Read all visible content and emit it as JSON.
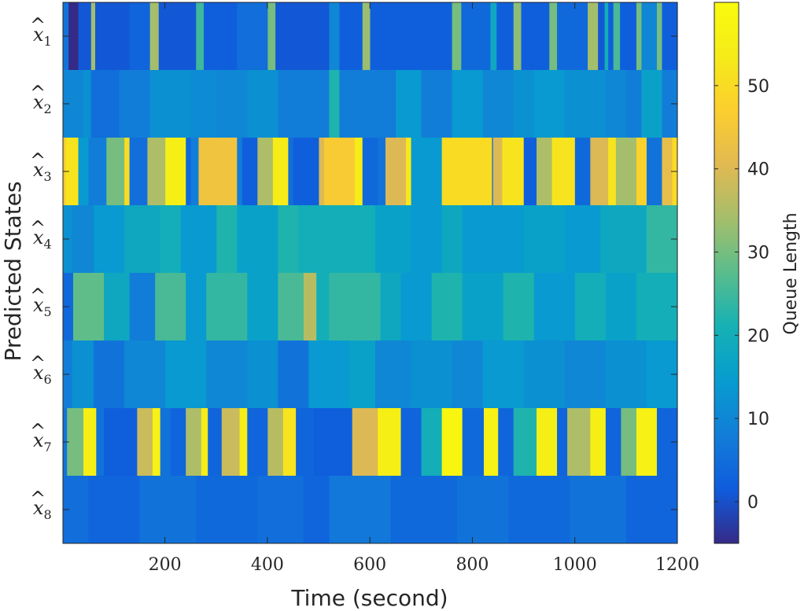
{
  "chart_data": {
    "type": "heatmap",
    "xlabel": "Time (second)",
    "ylabel": "Predicted States",
    "colorbar_label": "Queue Length",
    "colormap": "parula",
    "x_range": [
      1,
      1200
    ],
    "x_ticks": [
      200,
      400,
      600,
      800,
      1000,
      1200
    ],
    "color_range": [
      -5,
      60
    ],
    "colorbar_ticks": [
      0,
      10,
      20,
      30,
      40,
      50
    ],
    "rows": [
      {
        "symbol": "x",
        "index": "1",
        "label": "x̂1",
        "segments": [
          [
            0,
            10,
            6
          ],
          [
            30,
            55,
            1
          ],
          [
            55,
            63,
            34
          ],
          [
            63,
            130,
            1
          ],
          [
            130,
            170,
            3
          ],
          [
            170,
            187,
            34
          ],
          [
            187,
            260,
            1
          ],
          [
            260,
            275,
            25
          ],
          [
            275,
            340,
            2
          ],
          [
            340,
            400,
            5
          ],
          [
            400,
            415,
            30
          ],
          [
            415,
            520,
            1
          ],
          [
            520,
            540,
            10
          ],
          [
            540,
            585,
            2
          ],
          [
            585,
            600,
            33
          ],
          [
            600,
            760,
            2
          ],
          [
            760,
            778,
            30
          ],
          [
            778,
            835,
            4
          ],
          [
            835,
            847,
            18
          ],
          [
            847,
            880,
            2
          ],
          [
            880,
            895,
            32
          ],
          [
            895,
            950,
            2
          ],
          [
            950,
            965,
            30
          ],
          [
            965,
            1025,
            4
          ],
          [
            1025,
            1045,
            34
          ],
          [
            1045,
            1058,
            1
          ],
          [
            1058,
            1065,
            20
          ],
          [
            1065,
            1075,
            2
          ],
          [
            1075,
            1088,
            26
          ],
          [
            1088,
            1120,
            2
          ],
          [
            1120,
            1130,
            30
          ],
          [
            1130,
            1160,
            10
          ],
          [
            1160,
            1170,
            30
          ],
          [
            1170,
            1200,
            2
          ]
        ]
      },
      {
        "symbol": "x",
        "index": "2",
        "label": "x̂2",
        "segments": [
          [
            0,
            40,
            10
          ],
          [
            40,
            55,
            12
          ],
          [
            55,
            110,
            5
          ],
          [
            110,
            170,
            8
          ],
          [
            170,
            250,
            12
          ],
          [
            250,
            300,
            11
          ],
          [
            300,
            360,
            10
          ],
          [
            360,
            420,
            12
          ],
          [
            420,
            520,
            8
          ],
          [
            520,
            540,
            22
          ],
          [
            540,
            650,
            8
          ],
          [
            650,
            700,
            14
          ],
          [
            700,
            760,
            8
          ],
          [
            760,
            820,
            14
          ],
          [
            820,
            880,
            10
          ],
          [
            880,
            920,
            12
          ],
          [
            920,
            980,
            14
          ],
          [
            980,
            1060,
            12
          ],
          [
            1060,
            1100,
            10
          ],
          [
            1100,
            1130,
            8
          ],
          [
            1130,
            1170,
            16
          ],
          [
            1170,
            1200,
            8
          ]
        ]
      },
      {
        "symbol": "x",
        "index": "3",
        "label": "x̂3",
        "segments": [
          [
            0,
            5,
            45
          ],
          [
            5,
            30,
            52
          ],
          [
            30,
            50,
            14
          ],
          [
            50,
            85,
            8
          ],
          [
            85,
            120,
            30
          ],
          [
            120,
            130,
            50
          ],
          [
            130,
            165,
            5
          ],
          [
            165,
            200,
            35
          ],
          [
            200,
            240,
            55
          ],
          [
            240,
            250,
            4
          ],
          [
            250,
            265,
            8
          ],
          [
            265,
            340,
            44
          ],
          [
            340,
            350,
            8
          ],
          [
            350,
            380,
            2
          ],
          [
            380,
            410,
            35
          ],
          [
            410,
            440,
            54
          ],
          [
            440,
            450,
            5
          ],
          [
            450,
            500,
            2
          ],
          [
            500,
            510,
            40
          ],
          [
            510,
            570,
            46
          ],
          [
            570,
            585,
            54
          ],
          [
            585,
            615,
            4
          ],
          [
            615,
            630,
            6
          ],
          [
            630,
            670,
            40
          ],
          [
            670,
            680,
            53
          ],
          [
            680,
            740,
            14
          ],
          [
            740,
            800,
            50
          ],
          [
            800,
            838,
            50
          ],
          [
            838,
            840,
            4
          ],
          [
            840,
            858,
            40
          ],
          [
            858,
            900,
            52
          ],
          [
            900,
            925,
            2
          ],
          [
            925,
            955,
            35
          ],
          [
            955,
            1000,
            52
          ],
          [
            1000,
            1030,
            4
          ],
          [
            1030,
            1065,
            40
          ],
          [
            1065,
            1080,
            52
          ],
          [
            1080,
            1120,
            34
          ],
          [
            1120,
            1140,
            48
          ],
          [
            1140,
            1170,
            6
          ],
          [
            1170,
            1190,
            42
          ],
          [
            1190,
            1200,
            50
          ]
        ]
      },
      {
        "symbol": "x",
        "index": "4",
        "label": "x̂4",
        "segments": [
          [
            0,
            18,
            12
          ],
          [
            18,
            60,
            10
          ],
          [
            60,
            120,
            14
          ],
          [
            120,
            190,
            18
          ],
          [
            190,
            230,
            20
          ],
          [
            230,
            300,
            14
          ],
          [
            300,
            340,
            22
          ],
          [
            340,
            420,
            16
          ],
          [
            420,
            460,
            22
          ],
          [
            460,
            610,
            20
          ],
          [
            610,
            680,
            16
          ],
          [
            680,
            740,
            14
          ],
          [
            740,
            780,
            18
          ],
          [
            780,
            900,
            14
          ],
          [
            900,
            980,
            16
          ],
          [
            980,
            1050,
            14
          ],
          [
            1050,
            1140,
            18
          ],
          [
            1140,
            1200,
            24
          ]
        ]
      },
      {
        "symbol": "x",
        "index": "5",
        "label": "x̂5",
        "segments": [
          [
            0,
            20,
            4
          ],
          [
            20,
            80,
            28
          ],
          [
            80,
            130,
            18
          ],
          [
            130,
            180,
            8
          ],
          [
            180,
            240,
            26
          ],
          [
            240,
            280,
            14
          ],
          [
            280,
            360,
            24
          ],
          [
            360,
            420,
            16
          ],
          [
            420,
            470,
            26
          ],
          [
            470,
            495,
            36
          ],
          [
            495,
            520,
            20
          ],
          [
            520,
            620,
            24
          ],
          [
            620,
            660,
            18
          ],
          [
            660,
            720,
            14
          ],
          [
            720,
            780,
            22
          ],
          [
            780,
            860,
            16
          ],
          [
            860,
            920,
            22
          ],
          [
            920,
            1000,
            14
          ],
          [
            1000,
            1060,
            20
          ],
          [
            1060,
            1120,
            16
          ],
          [
            1120,
            1200,
            20
          ]
        ]
      },
      {
        "symbol": "x",
        "index": "6",
        "label": "x̂6",
        "segments": [
          [
            0,
            18,
            8
          ],
          [
            18,
            60,
            12
          ],
          [
            60,
            120,
            6
          ],
          [
            120,
            200,
            10
          ],
          [
            200,
            280,
            14
          ],
          [
            280,
            360,
            10
          ],
          [
            360,
            420,
            12
          ],
          [
            420,
            480,
            6
          ],
          [
            480,
            560,
            14
          ],
          [
            560,
            610,
            16
          ],
          [
            610,
            680,
            10
          ],
          [
            680,
            760,
            12
          ],
          [
            760,
            820,
            10
          ],
          [
            820,
            900,
            14
          ],
          [
            900,
            980,
            12
          ],
          [
            980,
            1060,
            10
          ],
          [
            1060,
            1140,
            12
          ],
          [
            1140,
            1200,
            14
          ]
        ]
      },
      {
        "symbol": "x",
        "index": "7",
        "label": "x̂7",
        "segments": [
          [
            0,
            8,
            6
          ],
          [
            8,
            40,
            30
          ],
          [
            40,
            65,
            55
          ],
          [
            65,
            80,
            6
          ],
          [
            80,
            145,
            2
          ],
          [
            145,
            175,
            38
          ],
          [
            175,
            190,
            56
          ],
          [
            190,
            210,
            6
          ],
          [
            210,
            240,
            3
          ],
          [
            240,
            270,
            35
          ],
          [
            270,
            283,
            54
          ],
          [
            283,
            310,
            3
          ],
          [
            310,
            345,
            38
          ],
          [
            345,
            360,
            54
          ],
          [
            360,
            400,
            3
          ],
          [
            400,
            430,
            36
          ],
          [
            430,
            455,
            52
          ],
          [
            455,
            490,
            3
          ],
          [
            490,
            565,
            2
          ],
          [
            565,
            615,
            40
          ],
          [
            615,
            660,
            55
          ],
          [
            660,
            700,
            3
          ],
          [
            700,
            740,
            20
          ],
          [
            740,
            780,
            58
          ],
          [
            780,
            822,
            4
          ],
          [
            822,
            850,
            56
          ],
          [
            850,
            880,
            3
          ],
          [
            880,
            925,
            22
          ],
          [
            925,
            965,
            55
          ],
          [
            965,
            985,
            3
          ],
          [
            985,
            1030,
            35
          ],
          [
            1030,
            1060,
            55
          ],
          [
            1060,
            1090,
            3
          ],
          [
            1090,
            1120,
            30
          ],
          [
            1120,
            1160,
            56
          ],
          [
            1160,
            1200,
            3
          ]
        ]
      },
      {
        "symbol": "x",
        "index": "8",
        "label": "x̂8",
        "segments": [
          [
            0,
            50,
            5
          ],
          [
            50,
            150,
            3
          ],
          [
            150,
            260,
            6
          ],
          [
            260,
            380,
            4
          ],
          [
            380,
            470,
            5
          ],
          [
            470,
            520,
            3
          ],
          [
            520,
            640,
            7
          ],
          [
            640,
            770,
            4
          ],
          [
            770,
            870,
            6
          ],
          [
            870,
            990,
            4
          ],
          [
            990,
            1100,
            6
          ],
          [
            1100,
            1200,
            3
          ]
        ]
      }
    ]
  }
}
